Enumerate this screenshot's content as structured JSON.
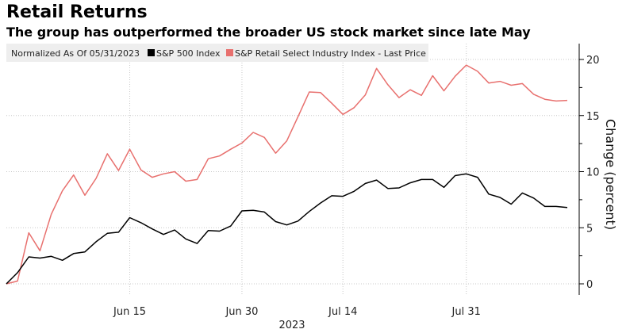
{
  "title": "Retail Returns",
  "subtitle": "The group has outperformed the broader US stock market since late May",
  "chart_data": {
    "type": "line",
    "legend_note": "Normalized As Of 05/31/2023",
    "legend_position": "top-left",
    "x": [
      "2023-05-31",
      "2023-06-01",
      "2023-06-02",
      "2023-06-05",
      "2023-06-06",
      "2023-06-07",
      "2023-06-08",
      "2023-06-09",
      "2023-06-12",
      "2023-06-13",
      "2023-06-14",
      "2023-06-15",
      "2023-06-16",
      "2023-06-20",
      "2023-06-21",
      "2023-06-22",
      "2023-06-23",
      "2023-06-26",
      "2023-06-27",
      "2023-06-28",
      "2023-06-29",
      "2023-06-30",
      "2023-07-03",
      "2023-07-05",
      "2023-07-06",
      "2023-07-07",
      "2023-07-10",
      "2023-07-11",
      "2023-07-12",
      "2023-07-13",
      "2023-07-14",
      "2023-07-17",
      "2023-07-18",
      "2023-07-19",
      "2023-07-20",
      "2023-07-21",
      "2023-07-24",
      "2023-07-25",
      "2023-07-26",
      "2023-07-27",
      "2023-07-28",
      "2023-07-31",
      "2023-08-01",
      "2023-08-02",
      "2023-08-03",
      "2023-08-04",
      "2023-08-07",
      "2023-08-08",
      "2023-08-09",
      "2023-08-10",
      "2023-08-11"
    ],
    "series": [
      {
        "name": "S&P 500 Index",
        "color": "#000000",
        "values": [
          0,
          1.0,
          2.4,
          2.3,
          2.45,
          2.1,
          2.7,
          2.85,
          3.75,
          4.5,
          4.6,
          5.9,
          5.45,
          4.9,
          4.4,
          4.8,
          4.0,
          3.6,
          4.75,
          4.7,
          5.15,
          6.5,
          6.55,
          6.4,
          5.55,
          5.25,
          5.6,
          6.45,
          7.2,
          7.85,
          7.8,
          8.25,
          8.95,
          9.25,
          8.5,
          8.55,
          9.0,
          9.3,
          9.3,
          8.6,
          9.65,
          9.8,
          9.5,
          8.0,
          7.7,
          7.1,
          8.1,
          7.65,
          6.9,
          6.9,
          6.8
        ]
      },
      {
        "name": "S&P Retail Select Industry Index - Last Price",
        "color": "#e8706e",
        "values": [
          0,
          0.25,
          4.55,
          2.95,
          6.2,
          8.3,
          9.7,
          7.9,
          9.4,
          11.6,
          10.1,
          12.0,
          10.15,
          9.5,
          9.8,
          10.0,
          9.15,
          9.3,
          11.15,
          11.4,
          12.0,
          12.55,
          13.5,
          13.05,
          11.65,
          12.75,
          14.9,
          17.1,
          17.05,
          16.1,
          15.1,
          15.7,
          16.85,
          19.2,
          17.75,
          16.6,
          17.3,
          16.8,
          18.55,
          17.2,
          18.5,
          19.5,
          18.95,
          17.9,
          18.05,
          17.7,
          17.85,
          16.9,
          16.45,
          16.3,
          16.35
        ]
      }
    ],
    "x_ticks": [
      {
        "label": "Jun 15",
        "date": "2023-06-15"
      },
      {
        "label": "Jun 30",
        "date": "2023-06-30"
      },
      {
        "label": "Jul 14",
        "date": "2023-07-14"
      },
      {
        "label": "Jul 31",
        "date": "2023-07-31"
      }
    ],
    "x_year_label": "2023",
    "y_ticks": [
      0,
      5,
      10,
      15,
      20
    ],
    "ylabel": "Change (percent)",
    "ylim": [
      -0.8,
      20.8
    ],
    "grid": true
  }
}
